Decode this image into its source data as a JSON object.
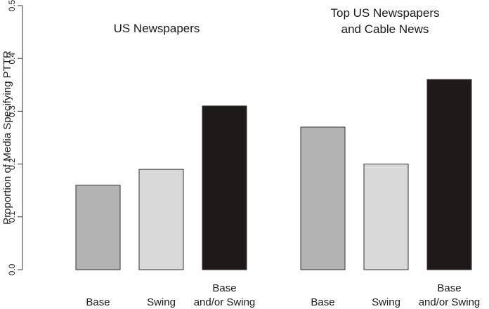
{
  "chart_data": {
    "type": "bar",
    "ylabel": "Proportion of Media Specifying PTTR",
    "ylim": [
      0,
      0.5
    ],
    "yticks": [
      "0.0",
      "0.1",
      "0.2",
      "0.3",
      "0.4",
      "0.5"
    ],
    "grid": false,
    "panels": [
      {
        "title_lines": [
          "US Newspapers"
        ],
        "categories": [
          [
            "Base"
          ],
          [
            "Swing"
          ],
          [
            "Base",
            "and/or Swing"
          ]
        ],
        "values": [
          0.16,
          0.19,
          0.31
        ],
        "colors": [
          "#b3b3b3",
          "#d9d9d9",
          "#1f1a1a"
        ]
      },
      {
        "title_lines": [
          "Top US Newspapers",
          "and Cable News"
        ],
        "categories": [
          [
            "Base"
          ],
          [
            "Swing"
          ],
          [
            "Base",
            "and/or Swing"
          ]
        ],
        "values": [
          0.27,
          0.2,
          0.36
        ],
        "colors": [
          "#b3b3b3",
          "#d9d9d9",
          "#1f1a1a"
        ]
      }
    ]
  }
}
